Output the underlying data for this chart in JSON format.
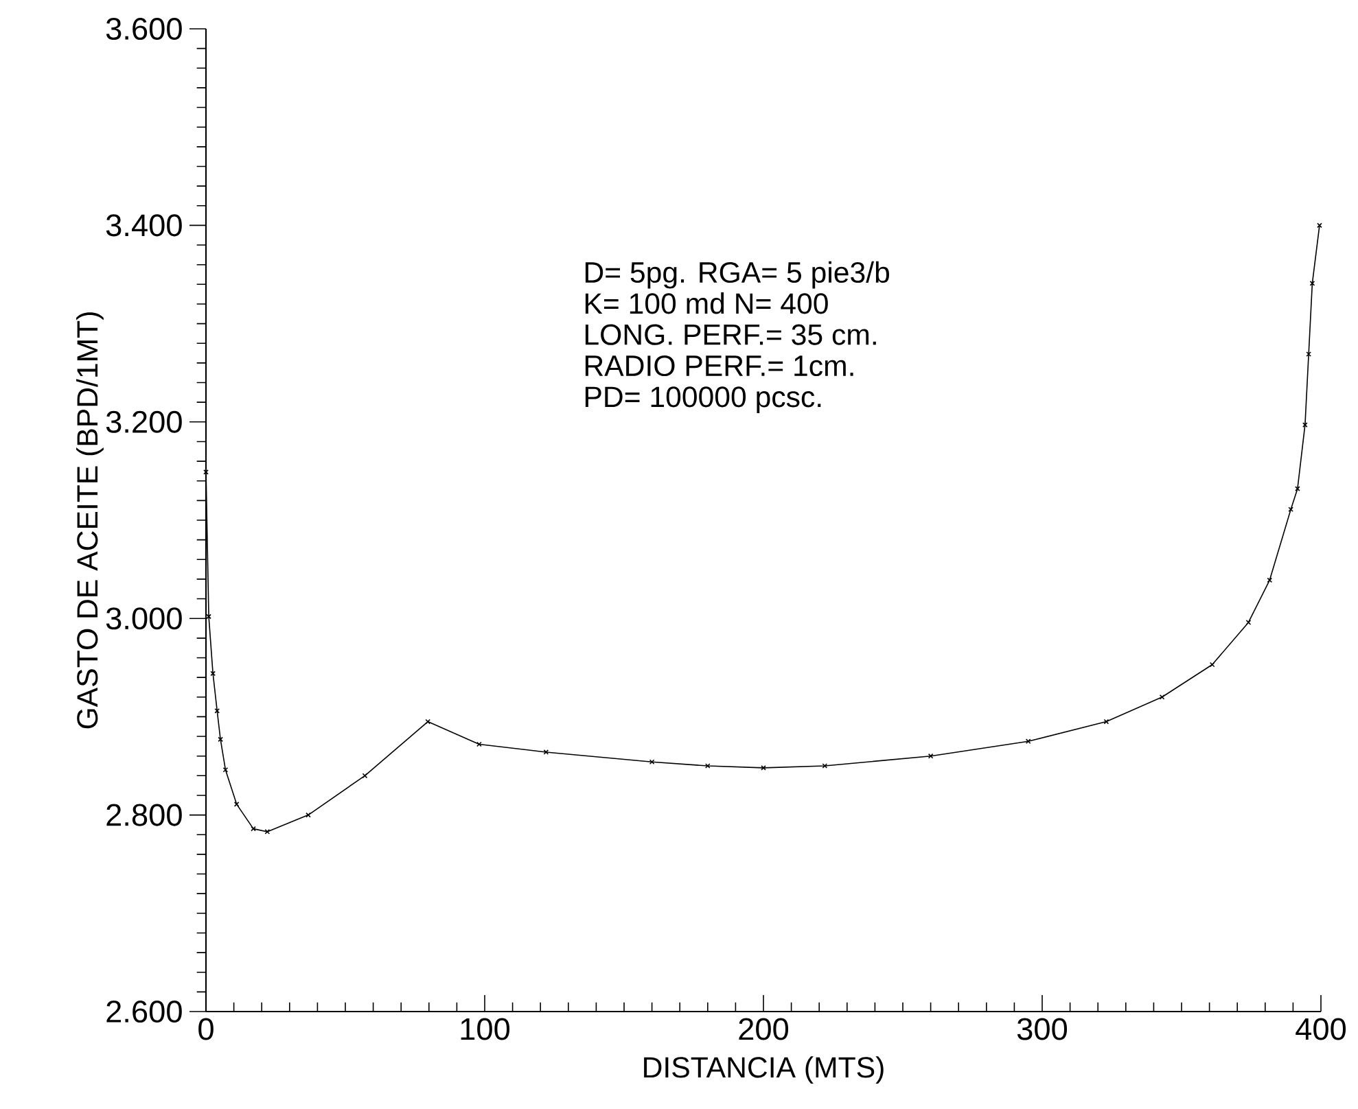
{
  "chart_data": {
    "type": "line",
    "xlabel": "DISTANCIA  (MTS)",
    "ylabel": "GASTO  DE  ACEITE  (BPD/1MT)",
    "annotations": [
      "D=  5pg.  RGA=  5  pie3/b",
      "K=  100  md  N=  400",
      "LONG.  PERF.=  35  cm.",
      "RADIO  PERF.=  1cm.",
      "PD=  100000  pcsc."
    ],
    "x": [
      0,
      1,
      2.5,
      4,
      5.2,
      7,
      11,
      17,
      22,
      36.7,
      57,
      79.6,
      98,
      122,
      160,
      180,
      200,
      222,
      260,
      295,
      323,
      343,
      361,
      374,
      381.6,
      389.2,
      391.6,
      394.3,
      395.6,
      396.9,
      399.5
    ],
    "series": [
      {
        "color": "#000000",
        "values": [
          3.149,
          3.002,
          2.944,
          2.906,
          2.877,
          2.846,
          2.811,
          2.786,
          2.783,
          2.8,
          2.84,
          2.895,
          2.872,
          2.864,
          2.854,
          2.85,
          2.848,
          2.85,
          2.86,
          2.875,
          2.895,
          2.92,
          2.953,
          2.996,
          3.039,
          3.111,
          3.132,
          3.197,
          3.269,
          3.341,
          3.4
        ]
      }
    ],
    "xlim": [
      0,
      400
    ],
    "xticks": [
      0,
      100,
      200,
      300,
      400
    ],
    "ylim": [
      2.6,
      3.6
    ],
    "yticks": [
      {
        "value": 2.6,
        "label": "2.600"
      },
      {
        "value": 2.8,
        "label": "2.800"
      },
      {
        "value": 3.0,
        "label": "3.000"
      },
      {
        "value": 3.2,
        "label": "3.200"
      },
      {
        "value": 3.4,
        "label": "3.400"
      },
      {
        "value": 3.6,
        "label": "3.600"
      }
    ],
    "grid": false,
    "marker": "cross",
    "line_style": "solid"
  }
}
